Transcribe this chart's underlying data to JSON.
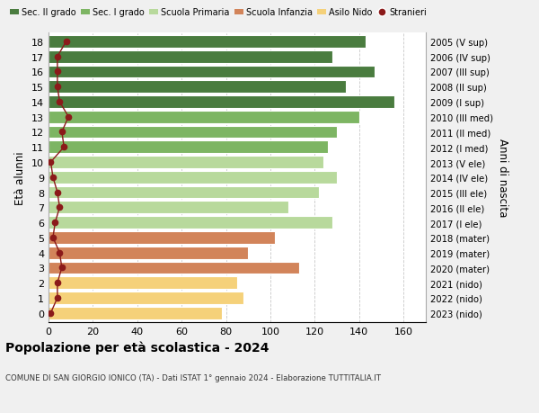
{
  "ages": [
    18,
    17,
    16,
    15,
    14,
    13,
    12,
    11,
    10,
    9,
    8,
    7,
    6,
    5,
    4,
    3,
    2,
    1,
    0
  ],
  "right_labels": [
    "2005 (V sup)",
    "2006 (IV sup)",
    "2007 (III sup)",
    "2008 (II sup)",
    "2009 (I sup)",
    "2010 (III med)",
    "2011 (II med)",
    "2012 (I med)",
    "2013 (V ele)",
    "2014 (IV ele)",
    "2015 (III ele)",
    "2016 (II ele)",
    "2017 (I ele)",
    "2018 (mater)",
    "2019 (mater)",
    "2020 (mater)",
    "2021 (nido)",
    "2022 (nido)",
    "2023 (nido)"
  ],
  "bar_values": [
    143,
    128,
    147,
    134,
    156,
    140,
    130,
    126,
    124,
    130,
    122,
    108,
    128,
    102,
    90,
    113,
    85,
    88,
    78
  ],
  "bar_colors": [
    "#4a7c3f",
    "#4a7c3f",
    "#4a7c3f",
    "#4a7c3f",
    "#4a7c3f",
    "#7db563",
    "#7db563",
    "#7db563",
    "#b8d99c",
    "#b8d99c",
    "#b8d99c",
    "#b8d99c",
    "#b8d99c",
    "#d2845a",
    "#d2845a",
    "#d2845a",
    "#f5d17a",
    "#f5d17a",
    "#f5d17a"
  ],
  "stranieri_values": [
    8,
    4,
    4,
    4,
    5,
    9,
    6,
    7,
    1,
    2,
    4,
    5,
    3,
    2,
    5,
    6,
    4,
    4,
    1
  ],
  "legend_labels": [
    "Sec. II grado",
    "Sec. I grado",
    "Scuola Primaria",
    "Scuola Infanzia",
    "Asilo Nido",
    "Stranieri"
  ],
  "legend_colors": [
    "#4a7c3f",
    "#7db563",
    "#b8d99c",
    "#d2845a",
    "#f5d17a",
    "#8b1a1a"
  ],
  "title": "Popolazione per età scolastica - 2024",
  "subtitle": "COMUNE DI SAN GIORGIO IONICO (TA) - Dati ISTAT 1° gennaio 2024 - Elaborazione TUTTITALIA.IT",
  "ylabel_left": "Età alunni",
  "ylabel_right": "Anni di nascita",
  "xlim": [
    0,
    170
  ],
  "xticks": [
    0,
    20,
    40,
    60,
    80,
    100,
    120,
    140,
    160
  ],
  "bg_color": "#f0f0f0",
  "plot_bg": "#ffffff",
  "stranieri_color": "#8b1a1a",
  "stranieri_line_color": "#8b1a1a",
  "bar_height": 0.82
}
